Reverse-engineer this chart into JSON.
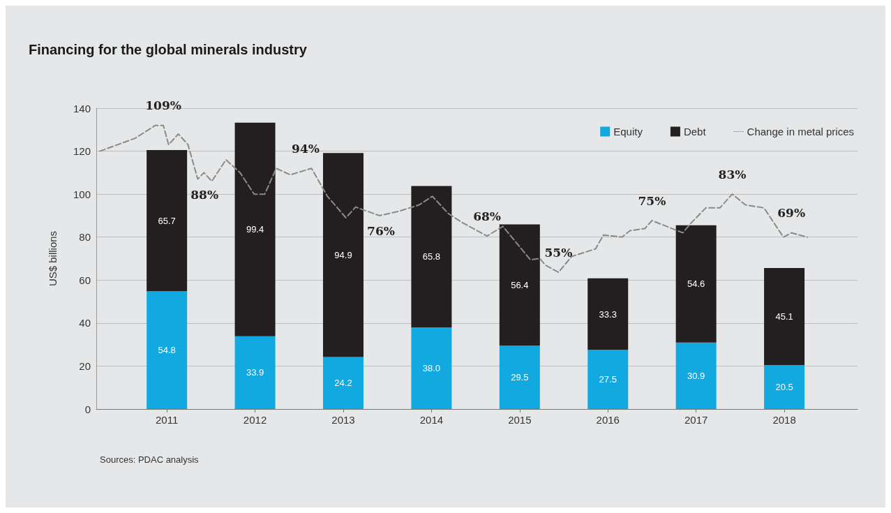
{
  "chart_data": {
    "type": "bar",
    "title": "Financing for the global minerals industry",
    "ylabel": "US$ billions",
    "x": [
      2011,
      2012,
      2013,
      2014,
      2015,
      2016,
      2017,
      2018
    ],
    "xlim": [
      2010.2,
      2018.83
    ],
    "xticks": [
      2011,
      2012,
      2013,
      2014,
      2015,
      2016,
      2017,
      2018
    ],
    "ylim": [
      0,
      140
    ],
    "yticks": [
      0,
      20,
      40,
      60,
      80,
      100,
      120,
      140
    ],
    "stacked": true,
    "grid": "y",
    "legend": "top right",
    "series": [
      {
        "name": "Equity",
        "color": "#12a9e0",
        "values": [
          54.8,
          33.9,
          24.2,
          38.0,
          29.5,
          27.5,
          30.9,
          20.5
        ],
        "value_labels": [
          "54.8",
          "33.9",
          "24.2",
          "38.0",
          "29.5",
          "27.5",
          "30.9",
          "20.5"
        ]
      },
      {
        "name": "Debt",
        "color": "#231f20",
        "values": [
          65.7,
          99.4,
          94.9,
          65.8,
          56.4,
          33.3,
          54.6,
          45.1
        ],
        "value_labels": [
          "65.7",
          "99.4",
          "94.9",
          "65.8",
          "56.4",
          "33.3",
          "54.6",
          "45.1"
        ]
      },
      {
        "name": "Change in metal prices",
        "type": "line",
        "color": "#8a8a8a",
        "line_style": "dashed",
        "marker": "none",
        "x": [
          2010.24,
          2010.64,
          2010.87,
          2010.96,
          2011.02,
          2011.13,
          2011.24,
          2011.35,
          2011.42,
          2011.51,
          2011.67,
          2011.83,
          2011.99,
          2012.11,
          2012.24,
          2012.4,
          2012.64,
          2012.82,
          2013.03,
          2013.14,
          2013.41,
          2013.63,
          2013.86,
          2014.01,
          2014.19,
          2014.34,
          2014.63,
          2014.81,
          2015.12,
          2015.23,
          2015.29,
          2015.44,
          2015.59,
          2015.86,
          2015.95,
          2016.16,
          2016.25,
          2016.42,
          2016.5,
          2016.85,
          2016.93,
          2017.11,
          2017.27,
          2017.41,
          2017.56,
          2017.77,
          2017.99,
          2018.08,
          2018.26
        ],
        "values": [
          120,
          126,
          132,
          132,
          123,
          128,
          123,
          107,
          110,
          106,
          116,
          110,
          100,
          100,
          112,
          109,
          112,
          99,
          89,
          94,
          90,
          92,
          95,
          99,
          91,
          87,
          80.5,
          85,
          69.5,
          70,
          67,
          63.6,
          71,
          74.5,
          81,
          80,
          83,
          84,
          87.7,
          82,
          86,
          93.6,
          93.6,
          100,
          95,
          93.6,
          80,
          82,
          80
        ]
      }
    ],
    "annotations": [
      {
        "text": "109%",
        "x": 2010.96,
        "y": 132
      },
      {
        "text": "88%",
        "x": 2011.35,
        "y": 107
      },
      {
        "text": "94%",
        "x": 2012.64,
        "y": 112
      },
      {
        "text": "76%",
        "x": 2013.41,
        "y": 90
      },
      {
        "text": "68%",
        "x": 2014.63,
        "y": 80.5
      },
      {
        "text": "55%",
        "x": 2015.44,
        "y": 63.6
      },
      {
        "text": "75%",
        "x": 2016.5,
        "y": 87.7
      },
      {
        "text": "83%",
        "x": 2017.41,
        "y": 100
      },
      {
        "text": "69%",
        "x": 2018.08,
        "y": 82
      },
      "Sources: PDAC analysis"
    ]
  }
}
